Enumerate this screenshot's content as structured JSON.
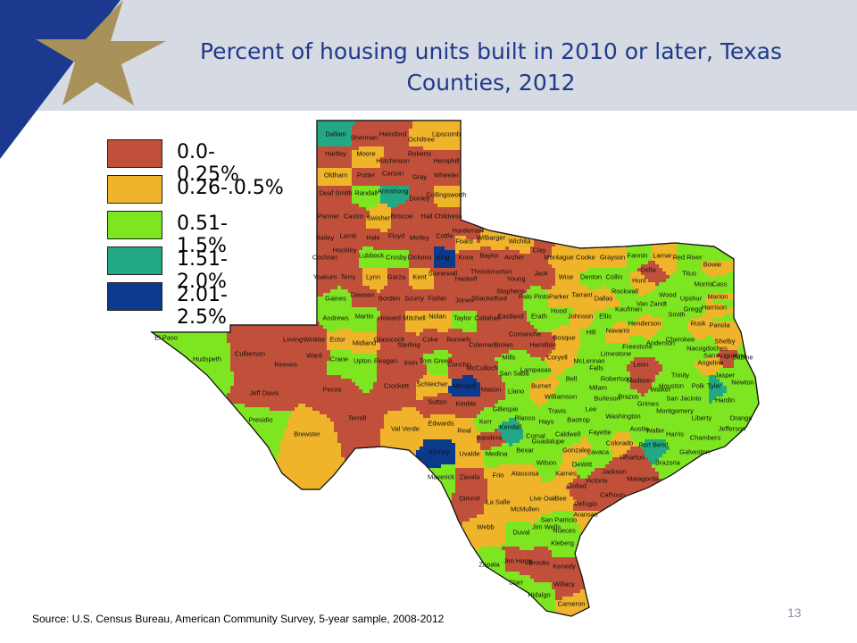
{
  "title": {
    "line1": "Percent of housing units built in 2010 or later, Texas",
    "line2": "Counties, 2012"
  },
  "legend": [
    {
      "label": "0.0-0.25%",
      "color": "#c0503a"
    },
    {
      "label": "0.26-.0.5%",
      "color": "#f0b42a"
    },
    {
      "label": "0.51-1.5%",
      "color": "#7ee621"
    },
    {
      "label": "1.51-2.0%",
      "color": "#22a884"
    },
    {
      "label": "2.01-2.5%",
      "color": "#0b3a8c"
    }
  ],
  "source": "Source: U.S. Census Bureau, American Community Survey, 5-year sample, 2008-2012",
  "page_number": "13",
  "colors": {
    "header": "#d5dae3",
    "title": "#1f3a8a",
    "navy": "#1b3a8f",
    "gold": "#a8925a"
  },
  "counties": [
    {
      "name": "Dallam",
      "class": 3
    },
    {
      "name": "Sherman",
      "class": 0
    },
    {
      "name": "Hansford",
      "class": 0
    },
    {
      "name": "Ochiltree",
      "class": 1
    },
    {
      "name": "Lipscomb",
      "class": 1
    },
    {
      "name": "Hartley",
      "class": 0
    },
    {
      "name": "Moore",
      "class": 1
    },
    {
      "name": "Hutchinson",
      "class": 0
    },
    {
      "name": "Roberts",
      "class": 0
    },
    {
      "name": "Hemphill",
      "class": 0
    },
    {
      "name": "Oldham",
      "class": 1
    },
    {
      "name": "Potter",
      "class": 0
    },
    {
      "name": "Carson",
      "class": 0
    },
    {
      "name": "Gray",
      "class": 0
    },
    {
      "name": "Wheeler",
      "class": 0
    },
    {
      "name": "Deaf Smith",
      "class": 0
    },
    {
      "name": "Randall",
      "class": 2
    },
    {
      "name": "Armstrong",
      "class": 3
    },
    {
      "name": "Donley",
      "class": 0
    },
    {
      "name": "Collingsworth",
      "class": 1
    },
    {
      "name": "Parmer",
      "class": 0
    },
    {
      "name": "Castro",
      "class": 0
    },
    {
      "name": "Swisher",
      "class": 1
    },
    {
      "name": "Briscoe",
      "class": 0
    },
    {
      "name": "Hall",
      "class": 0
    },
    {
      "name": "Childress",
      "class": 0
    },
    {
      "name": "Bailey",
      "class": 0
    },
    {
      "name": "Lamb",
      "class": 0
    },
    {
      "name": "Hale",
      "class": 0
    },
    {
      "name": "Floyd",
      "class": 0
    },
    {
      "name": "Motley",
      "class": 0
    },
    {
      "name": "Cottle",
      "class": 0
    },
    {
      "name": "Hardeman",
      "class": 0
    },
    {
      "name": "Foard",
      "class": 1
    },
    {
      "name": "Wilbarger",
      "class": 1
    },
    {
      "name": "Wichita",
      "class": 1
    },
    {
      "name": "Clay",
      "class": 0
    },
    {
      "name": "Cochran",
      "class": 0
    },
    {
      "name": "Hockley",
      "class": 0
    },
    {
      "name": "Lubbock",
      "class": 2
    },
    {
      "name": "Crosby",
      "class": 2
    },
    {
      "name": "Dickens",
      "class": 0
    },
    {
      "name": "King",
      "class": 4
    },
    {
      "name": "Knox",
      "class": 0
    },
    {
      "name": "Baylor",
      "class": 0
    },
    {
      "name": "Archer",
      "class": 0
    },
    {
      "name": "Montague",
      "class": 1
    },
    {
      "name": "Cooke",
      "class": 1
    },
    {
      "name": "Grayson",
      "class": 1
    },
    {
      "name": "Fannin",
      "class": 2
    },
    {
      "name": "Lamar",
      "class": 1
    },
    {
      "name": "Red River",
      "class": 2
    },
    {
      "name": "Bowie",
      "class": 1
    },
    {
      "name": "Yoakum",
      "class": 0
    },
    {
      "name": "Terry",
      "class": 0
    },
    {
      "name": "Lynn",
      "class": 1
    },
    {
      "name": "Garza",
      "class": 0
    },
    {
      "name": "Kent",
      "class": 1
    },
    {
      "name": "Stonewall",
      "class": 0
    },
    {
      "name": "Haskell",
      "class": 0
    },
    {
      "name": "Throckmorton",
      "class": 0
    },
    {
      "name": "Young",
      "class": 0
    },
    {
      "name": "Jack",
      "class": 0
    },
    {
      "name": "Wise",
      "class": 1
    },
    {
      "name": "Denton",
      "class": 2
    },
    {
      "name": "Collin",
      "class": 2
    },
    {
      "name": "Hunt",
      "class": 1
    },
    {
      "name": "Delta",
      "class": 0
    },
    {
      "name": "Titus",
      "class": 2
    },
    {
      "name": "Morris",
      "class": 2
    },
    {
      "name": "Cass",
      "class": 1
    },
    {
      "name": "Gaines",
      "class": 2
    },
    {
      "name": "Dawson",
      "class": 0
    },
    {
      "name": "Borden",
      "class": 0
    },
    {
      "name": "Scurry",
      "class": 0
    },
    {
      "name": "Fisher",
      "class": 0
    },
    {
      "name": "Jones",
      "class": 0
    },
    {
      "name": "Shackelford",
      "class": 0
    },
    {
      "name": "Stephens",
      "class": 0
    },
    {
      "name": "Palo Pinto",
      "class": 2
    },
    {
      "name": "Parker",
      "class": 1
    },
    {
      "name": "Tarrant",
      "class": 1
    },
    {
      "name": "Dallas",
      "class": 1
    },
    {
      "name": "Rockwall",
      "class": 2
    },
    {
      "name": "Kaufman",
      "class": 2
    },
    {
      "name": "Van Zandt",
      "class": 2
    },
    {
      "name": "Smith",
      "class": 2
    },
    {
      "name": "Wood",
      "class": 2
    },
    {
      "name": "Upshur",
      "class": 2
    },
    {
      "name": "Gregg",
      "class": 2
    },
    {
      "name": "Harrison",
      "class": 1
    },
    {
      "name": "Marion",
      "class": 1
    },
    {
      "name": "Andrews",
      "class": 2
    },
    {
      "name": "Martin",
      "class": 2
    },
    {
      "name": "Howard",
      "class": 0
    },
    {
      "name": "Mitchell",
      "class": 1
    },
    {
      "name": "Nolan",
      "class": 1
    },
    {
      "name": "Taylor",
      "class": 2
    },
    {
      "name": "Callahan",
      "class": 0
    },
    {
      "name": "Eastland",
      "class": 0
    },
    {
      "name": "Erath",
      "class": 2
    },
    {
      "name": "Hood",
      "class": 2
    },
    {
      "name": "Johnson",
      "class": 1
    },
    {
      "name": "Ellis",
      "class": 2
    },
    {
      "name": "Henderson",
      "class": 1
    },
    {
      "name": "Rusk",
      "class": 1
    },
    {
      "name": "Panola",
      "class": 1
    },
    {
      "name": "Cherokee",
      "class": 2
    },
    {
      "name": "Nacogdoches",
      "class": 2
    },
    {
      "name": "Shelby",
      "class": 1
    },
    {
      "name": "El Paso",
      "class": 2
    },
    {
      "name": "Hudspeth",
      "class": 2
    },
    {
      "name": "Culberson",
      "class": 0
    },
    {
      "name": "Loving",
      "class": 0
    },
    {
      "name": "Winkler",
      "class": 0
    },
    {
      "name": "Ector",
      "class": 1
    },
    {
      "name": "Midland",
      "class": 1
    },
    {
      "name": "Glasscock",
      "class": 0
    },
    {
      "name": "Sterling",
      "class": 0
    },
    {
      "name": "Coke",
      "class": 0
    },
    {
      "name": "Runnels",
      "class": 0
    },
    {
      "name": "Coleman",
      "class": 0
    },
    {
      "name": "Brown",
      "class": 0
    },
    {
      "name": "Comanche",
      "class": 0
    },
    {
      "name": "Hamilton",
      "class": 0
    },
    {
      "name": "Bosque",
      "class": 1
    },
    {
      "name": "Hill",
      "class": 2
    },
    {
      "name": "Navarro",
      "class": 1
    },
    {
      "name": "Freestone",
      "class": 2
    },
    {
      "name": "Anderson",
      "class": 2
    },
    {
      "name": "Houston",
      "class": 2
    },
    {
      "name": "Angelina",
      "class": 1
    },
    {
      "name": "San Augustine",
      "class": 0
    },
    {
      "name": "Sabine",
      "class": 2
    },
    {
      "name": "Reeves",
      "class": 0
    },
    {
      "name": "Ward",
      "class": 0
    },
    {
      "name": "Crane",
      "class": 2
    },
    {
      "name": "Upton",
      "class": 2
    },
    {
      "name": "Reagan",
      "class": 0
    },
    {
      "name": "Irion",
      "class": 0
    },
    {
      "name": "Tom Green",
      "class": 2
    },
    {
      "name": "Concho",
      "class": 0
    },
    {
      "name": "McCulloch",
      "class": 0
    },
    {
      "name": "Mills",
      "class": 2
    },
    {
      "name": "San Saba",
      "class": 2
    },
    {
      "name": "Lampasas",
      "class": 2
    },
    {
      "name": "Coryell",
      "class": 1
    },
    {
      "name": "McLennan",
      "class": 2
    },
    {
      "name": "Limestone",
      "class": 2
    },
    {
      "name": "Falls",
      "class": 2
    },
    {
      "name": "Leon",
      "class": 0
    },
    {
      "name": "Trinity",
      "class": 2
    },
    {
      "name": "Polk",
      "class": 2
    },
    {
      "name": "Tyler",
      "class": 3
    },
    {
      "name": "Jasper",
      "class": 2
    },
    {
      "name": "Newton",
      "class": 2
    },
    {
      "name": "Jeff Davis",
      "class": 0
    },
    {
      "name": "Pecos",
      "class": 0
    },
    {
      "name": "Crockett",
      "class": 0
    },
    {
      "name": "Schleicher",
      "class": 1
    },
    {
      "name": "Menard",
      "class": 4
    },
    {
      "name": "Mason",
      "class": 0
    },
    {
      "name": "Llano",
      "class": 2
    },
    {
      "name": "Burnet",
      "class": 1
    },
    {
      "name": "Bell",
      "class": 2
    },
    {
      "name": "Milam",
      "class": 2
    },
    {
      "name": "Robertson",
      "class": 2
    },
    {
      "name": "Madison",
      "class": 0
    },
    {
      "name": "Walker",
      "class": 2
    },
    {
      "name": "San Jacinto",
      "class": 2
    },
    {
      "name": "Hardin",
      "class": 2
    },
    {
      "name": "Orange",
      "class": 2
    },
    {
      "name": "Presidio",
      "class": 2
    },
    {
      "name": "Brewster",
      "class": 1
    },
    {
      "name": "Terrell",
      "class": 0
    },
    {
      "name": "Val Verde",
      "class": 1
    },
    {
      "name": "Sutton",
      "class": 0
    },
    {
      "name": "Kimble",
      "class": 0
    },
    {
      "name": "Gillespie",
      "class": 2
    },
    {
      "name": "Blanco",
      "class": 2
    },
    {
      "name": "Williamson",
      "class": 2
    },
    {
      "name": "Travis",
      "class": 2
    },
    {
      "name": "Lee",
      "class": 2
    },
    {
      "name": "Burleson",
      "class": 2
    },
    {
      "name": "Brazos",
      "class": 2
    },
    {
      "name": "Grimes",
      "class": 2
    },
    {
      "name": "Montgomery",
      "class": 2
    },
    {
      "name": "Liberty",
      "class": 2
    },
    {
      "name": "Jefferson",
      "class": 2
    },
    {
      "name": "Edwards",
      "class": 1
    },
    {
      "name": "Real",
      "class": 1
    },
    {
      "name": "Kerr",
      "class": 2
    },
    {
      "name": "Kendall",
      "class": 3
    },
    {
      "name": "Comal",
      "class": 2
    },
    {
      "name": "Hays",
      "class": 2
    },
    {
      "name": "Bastrop",
      "class": 2
    },
    {
      "name": "Fayette",
      "class": 2
    },
    {
      "name": "Washington",
      "class": 2
    },
    {
      "name": "Waller",
      "class": 2
    },
    {
      "name": "Harris",
      "class": 2
    },
    {
      "name": "Chambers",
      "class": 2
    },
    {
      "name": "Kinney",
      "class": 4
    },
    {
      "name": "Uvalde",
      "class": 1
    },
    {
      "name": "Medina",
      "class": 2
    },
    {
      "name": "Bandera",
      "class": 0
    },
    {
      "name": "Bexar",
      "class": 2
    },
    {
      "name": "Guadalupe",
      "class": 2
    },
    {
      "name": "Caldwell",
      "class": 2
    },
    {
      "name": "Gonzales",
      "class": 1
    },
    {
      "name": "Lavaca",
      "class": 2
    },
    {
      "name": "Colorado",
      "class": 1
    },
    {
      "name": "Austin",
      "class": 2
    },
    {
      "name": "Fort Bend",
      "class": 3
    },
    {
      "name": "Galveston",
      "class": 2
    },
    {
      "name": "Brazoria",
      "class": 2
    },
    {
      "name": "Wharton",
      "class": 0
    },
    {
      "name": "Matagorda",
      "class": 0
    },
    {
      "name": "Jackson",
      "class": 0
    },
    {
      "name": "Victoria",
      "class": 0
    },
    {
      "name": "DeWitt",
      "class": 2
    },
    {
      "name": "Karnes",
      "class": 1
    },
    {
      "name": "Wilson",
      "class": 2
    },
    {
      "name": "Atascosa",
      "class": 1
    },
    {
      "name": "Frio",
      "class": 1
    },
    {
      "name": "Zavala",
      "class": 0
    },
    {
      "name": "Maverick",
      "class": 2
    },
    {
      "name": "Dimmit",
      "class": 0
    },
    {
      "name": "La Salle",
      "class": 1
    },
    {
      "name": "McMullen",
      "class": 1
    },
    {
      "name": "Live Oak",
      "class": 1
    },
    {
      "name": "Bee",
      "class": 1
    },
    {
      "name": "Goliad",
      "class": 0
    },
    {
      "name": "Calhoun",
      "class": 0
    },
    {
      "name": "Refugio",
      "class": 0
    },
    {
      "name": "Aransas",
      "class": 1
    },
    {
      "name": "San Patricio",
      "class": 2
    },
    {
      "name": "Nueces",
      "class": 2
    },
    {
      "name": "Webb",
      "class": 1
    },
    {
      "name": "Duval",
      "class": 2
    },
    {
      "name": "Jim Wells",
      "class": 2
    },
    {
      "name": "Kleberg",
      "class": 2
    },
    {
      "name": "Zapata",
      "class": 2
    },
    {
      "name": "Jim Hogg",
      "class": 0
    },
    {
      "name": "Brooks",
      "class": 0
    },
    {
      "name": "Kenedy",
      "class": 0
    },
    {
      "name": "Starr",
      "class": 2
    },
    {
      "name": "Hidalgo",
      "class": 2
    },
    {
      "name": "Willacy",
      "class": 0
    },
    {
      "name": "Cameron",
      "class": 1
    }
  ]
}
